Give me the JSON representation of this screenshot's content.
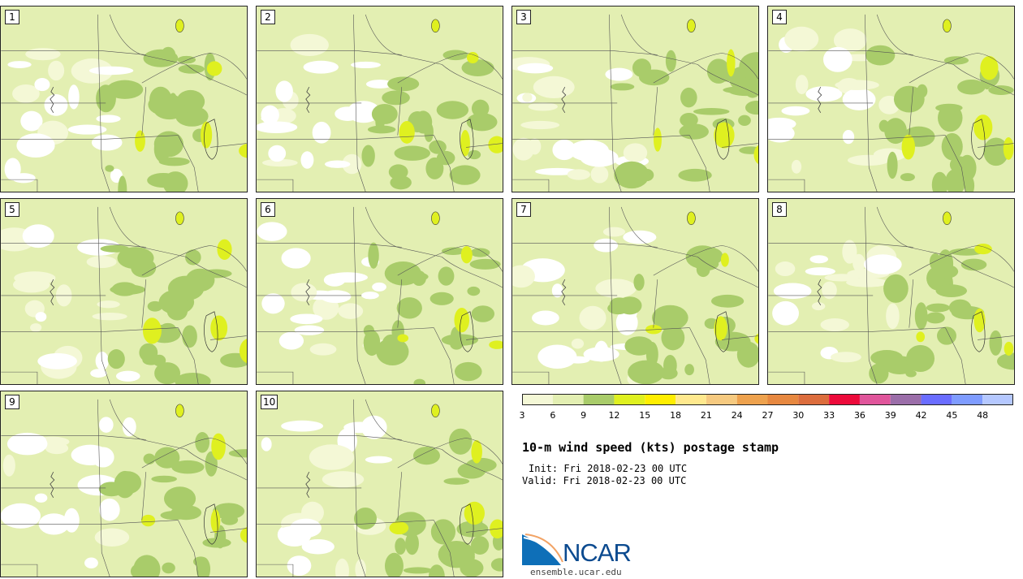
{
  "panels": [
    {
      "label": "1"
    },
    {
      "label": "2"
    },
    {
      "label": "3"
    },
    {
      "label": "4"
    },
    {
      "label": "5"
    },
    {
      "label": "6"
    },
    {
      "label": "7"
    },
    {
      "label": "8"
    },
    {
      "label": "9"
    },
    {
      "label": "10"
    }
  ],
  "colorbar": {
    "colors": [
      "#f4f8d6",
      "#e3efb2",
      "#a9cc6a",
      "#dff020",
      "#ffee00",
      "#ffe98e",
      "#f6ca80",
      "#eea24e",
      "#e78840",
      "#dc6d3d",
      "#ed0b3b",
      "#e0559b",
      "#9b6ea9",
      "#6a6dff",
      "#7f9cff",
      "#b5c8ff"
    ],
    "tick_labels": [
      "3",
      "6",
      "9",
      "12",
      "15",
      "18",
      "21",
      "24",
      "27",
      "30",
      "33",
      "36",
      "39",
      "42",
      "45",
      "48"
    ]
  },
  "title": "10-m wind speed (kts) postage stamp",
  "init_text": "Init: Fri 2018-02-23 00 UTC",
  "valid_text": "Valid: Fri 2018-02-23 00 UTC",
  "logo": {
    "text": "NCAR"
  },
  "site": "ensemble.ucar.edu"
}
